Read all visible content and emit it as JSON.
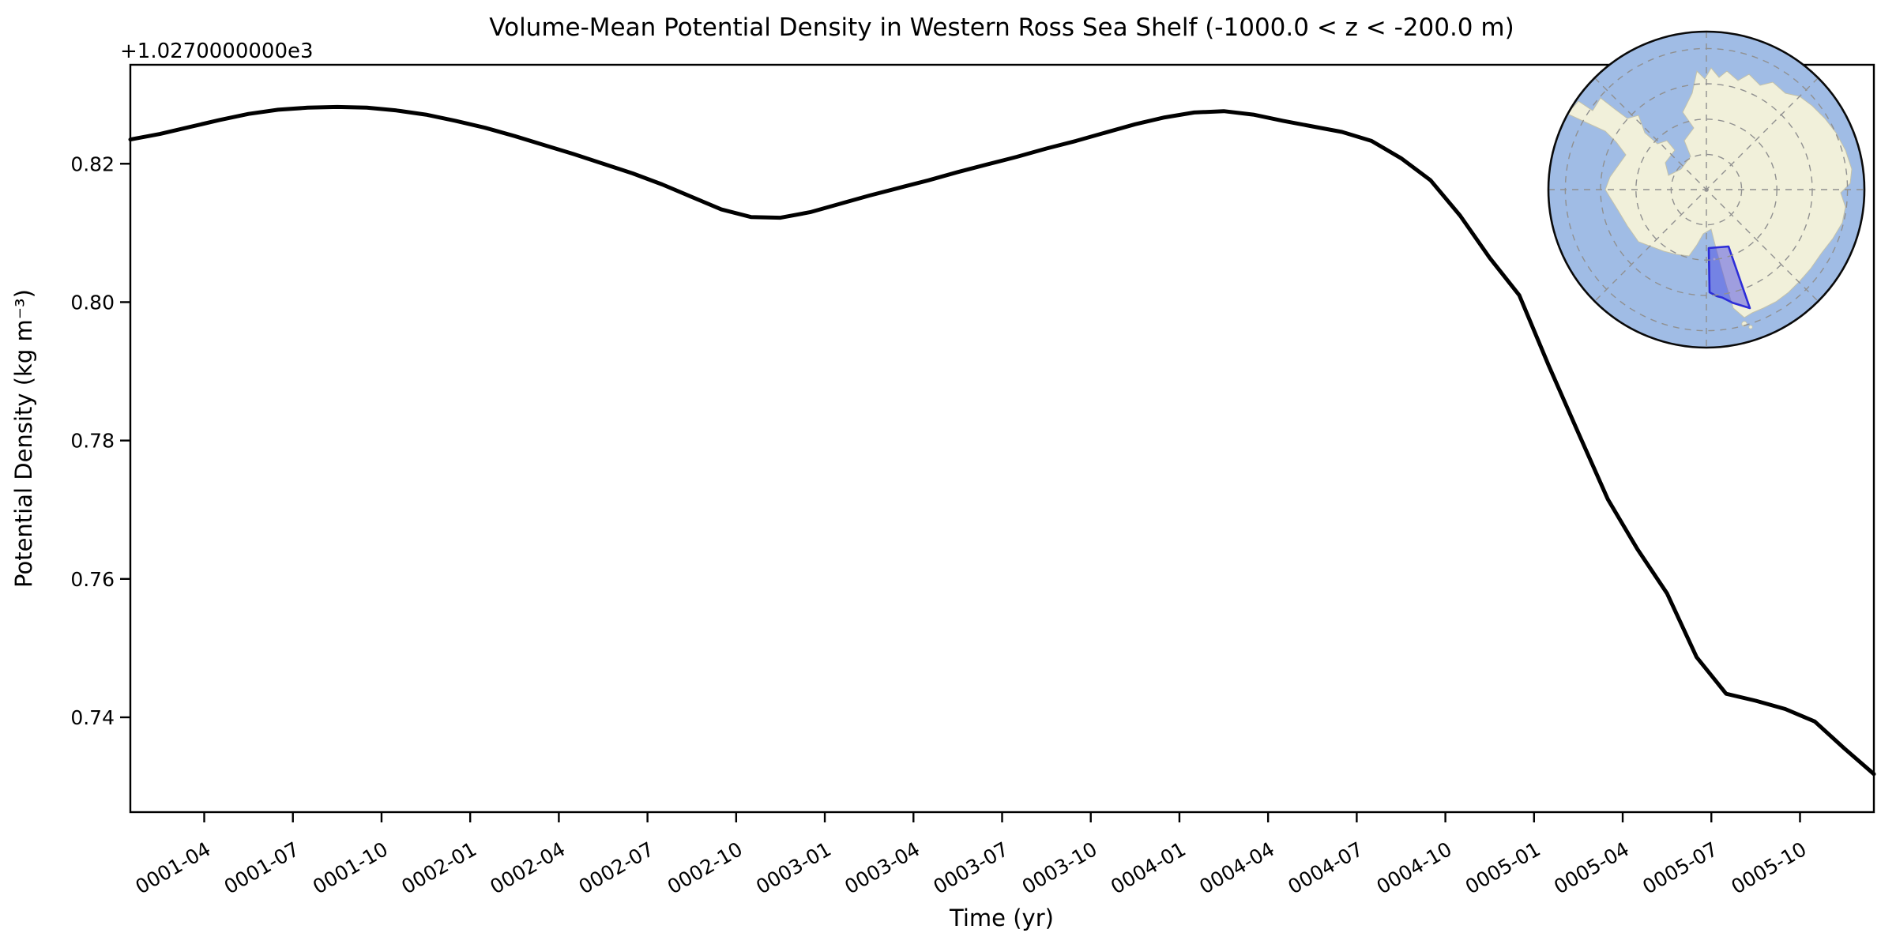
{
  "chart_data": {
    "type": "line",
    "title": "Volume-Mean Potential Density in Western Ross Sea Shelf (-1000.0 < z < -200.0 m)",
    "offset_text": "+1.0270000000e3",
    "xlabel": "Time (yr)",
    "ylabel": "Potential Density (kg m⁻³)",
    "value_offset": 1027.0,
    "line_color": "#000000",
    "line_width": 5,
    "x_monthly": [
      "0001-01",
      "0001-02",
      "0001-03",
      "0001-04",
      "0001-05",
      "0001-06",
      "0001-07",
      "0001-08",
      "0001-09",
      "0001-10",
      "0001-11",
      "0001-12",
      "0002-01",
      "0002-02",
      "0002-03",
      "0002-04",
      "0002-05",
      "0002-06",
      "0002-07",
      "0002-08",
      "0002-09",
      "0002-10",
      "0002-11",
      "0002-12",
      "0003-01",
      "0003-02",
      "0003-03",
      "0003-04",
      "0003-05",
      "0003-06",
      "0003-07",
      "0003-08",
      "0003-09",
      "0003-10",
      "0003-11",
      "0003-12",
      "0004-01",
      "0004-02",
      "0004-03",
      "0004-04",
      "0004-05",
      "0004-06",
      "0004-07",
      "0004-08",
      "0004-09",
      "0004-10",
      "0004-11",
      "0004-12",
      "0005-01",
      "0005-02",
      "0005-03",
      "0005-04",
      "0005-05",
      "0005-06",
      "0005-07",
      "0005-08",
      "0005-09",
      "0005-10",
      "0005-11",
      "0005-12"
    ],
    "values": [
      0.8235,
      0.8243,
      0.8253,
      0.8263,
      0.8272,
      0.8278,
      0.8281,
      0.8282,
      0.8281,
      0.8277,
      0.8271,
      0.8262,
      0.8252,
      0.824,
      0.8227,
      0.8214,
      0.82,
      0.8186,
      0.817,
      0.8152,
      0.8134,
      0.8123,
      0.8122,
      0.813,
      0.8142,
      0.8154,
      0.8165,
      0.8176,
      0.8188,
      0.8199,
      0.821,
      0.8222,
      0.8233,
      0.8245,
      0.8257,
      0.8267,
      0.8274,
      0.8276,
      0.8271,
      0.8262,
      0.8254,
      0.8246,
      0.8233,
      0.8208,
      0.8176,
      0.8125,
      0.8064,
      0.801,
      0.7908,
      0.7811,
      0.7715,
      0.7643,
      0.7579,
      0.7487,
      0.7434,
      0.7424,
      0.7412,
      0.7394,
      0.7355,
      0.7318
    ],
    "x_ticks": [
      "0001-04",
      "0001-07",
      "0001-10",
      "0002-01",
      "0002-04",
      "0002-07",
      "0002-10",
      "0003-01",
      "0003-04",
      "0003-07",
      "0003-10",
      "0004-01",
      "0004-04",
      "0004-07",
      "0004-10",
      "0005-01",
      "0005-04",
      "0005-07",
      "0005-10"
    ],
    "y_ticks": [
      0.74,
      0.76,
      0.78,
      0.8,
      0.82
    ],
    "ylim": [
      0.7263,
      0.8343
    ],
    "xlim_months": [
      0,
      59
    ],
    "x_tick_rotation_deg": 30,
    "grid": "off",
    "legend": "none"
  },
  "inset_map": {
    "description": "South polar view of Antarctica with highlighted Western Ross Sea Shelf region",
    "ocean_color": "#a0bce5",
    "land_color": "#f1f0da",
    "land_edge_color": "#c3c2ab",
    "graticule_color": "#909090",
    "rim_color": "#0a0a0a",
    "highlight_fill": "rgba(68,68,228,0.48)",
    "highlight_edge": "#2d2dd8"
  }
}
